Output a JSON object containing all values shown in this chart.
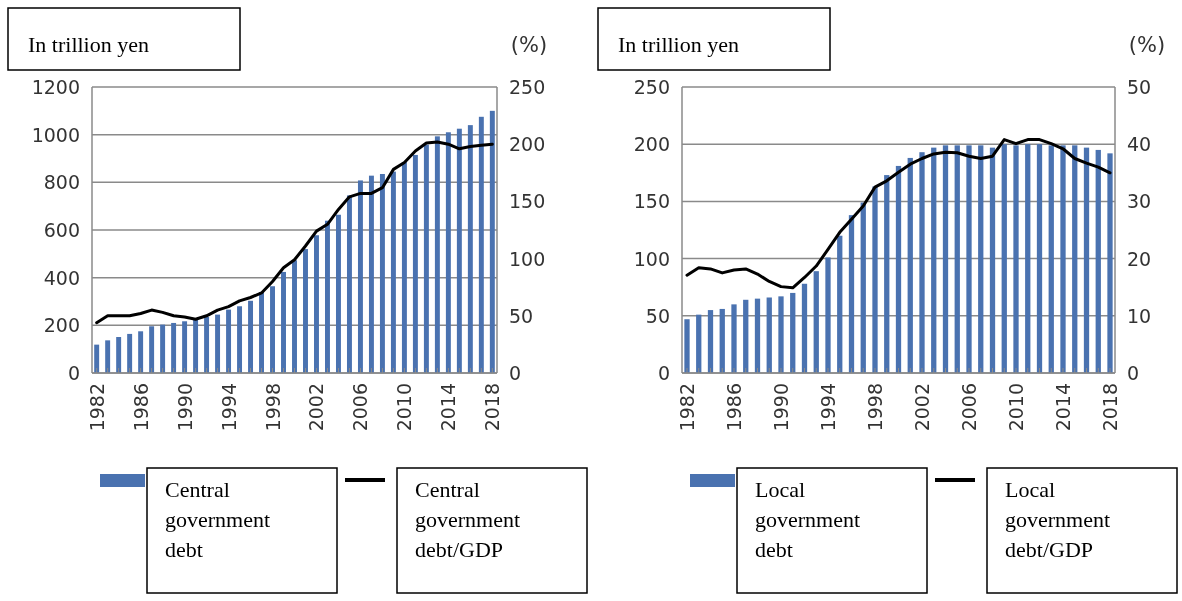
{
  "chart_data": [
    {
      "type": "bar",
      "ylabel": "In trillion yen",
      "y2label": "(%)",
      "categories": [
        "1982",
        null,
        null,
        null,
        "1986",
        null,
        null,
        null,
        "1990",
        null,
        null,
        null,
        "1994",
        null,
        null,
        null,
        "1998",
        null,
        null,
        null,
        "2002",
        null,
        null,
        null,
        "2006",
        null,
        null,
        null,
        "2010",
        null,
        null,
        null,
        "2014",
        null,
        null,
        null,
        "2018"
      ],
      "series": [
        {
          "name": "Central government debt",
          "color": "#4a72b0",
          "values": [
            119,
            137,
            151,
            164,
            175,
            196,
            203,
            210,
            217,
            224,
            235,
            245,
            266,
            280,
            303,
            340,
            364,
            424,
            473,
            520,
            578,
            639,
            664,
            745,
            808,
            828,
            835,
            845,
            885,
            915,
            958,
            993,
            1010,
            1025,
            1040,
            1075,
            1100
          ]
        },
        {
          "name": "Central government debt/GDP",
          "type": "line",
          "axis": "y2",
          "color": "#000000",
          "values": [
            44,
            50,
            50,
            50,
            52,
            55,
            53,
            50,
            49,
            47,
            50,
            55,
            58,
            63,
            66,
            70,
            80,
            92,
            99,
            111,
            124,
            130,
            143,
            154,
            157,
            157,
            162,
            178,
            184,
            194,
            201,
            202,
            200,
            196,
            198,
            199,
            200
          ]
        }
      ],
      "ylim": [
        0,
        1200
      ],
      "yticks": [
        0,
        200,
        400,
        600,
        800,
        1000,
        1200
      ],
      "y2lim": [
        0,
        250
      ],
      "y2ticks": [
        0,
        50,
        100,
        150,
        200,
        250
      ],
      "grid": "y",
      "legend": "bottom"
    },
    {
      "type": "bar",
      "ylabel": "In trillion yen",
      "y2label": "(%)",
      "categories": [
        "1982",
        null,
        null,
        null,
        "1986",
        null,
        null,
        null,
        "1990",
        null,
        null,
        null,
        "1994",
        null,
        null,
        null,
        "1998",
        null,
        null,
        null,
        "2002",
        null,
        null,
        null,
        "2006",
        null,
        null,
        null,
        "2010",
        null,
        null,
        null,
        "2014",
        null,
        null,
        null,
        "2018"
      ],
      "series": [
        {
          "name": "Local government debt",
          "color": "#4a72b0",
          "values": [
            47,
            51,
            55,
            56,
            60,
            64,
            65,
            66,
            67,
            70,
            78,
            89,
            101,
            120,
            138,
            149,
            163,
            173,
            181,
            188,
            193,
            197,
            199,
            199,
            199,
            199,
            197,
            200,
            199,
            200,
            200,
            199,
            199,
            199,
            197,
            195,
            192
          ]
        },
        {
          "name": "Local government debt/GDP",
          "type": "line",
          "axis": "y2",
          "color": "#000000",
          "values": [
            17.1,
            18.4,
            18.2,
            17.5,
            18,
            18.2,
            17.3,
            16,
            15.1,
            14.9,
            16.7,
            18.7,
            21.6,
            24.6,
            26.9,
            29.2,
            32.5,
            33.6,
            35.1,
            36.5,
            37.5,
            38.3,
            38.6,
            38.5,
            37.9,
            37.5,
            37.9,
            40.8,
            40.1,
            40.8,
            40.8,
            40.1,
            39.2,
            37.5,
            36.7,
            36,
            35
          ]
        }
      ],
      "ylim": [
        0,
        250
      ],
      "yticks": [
        0,
        50,
        100,
        150,
        200,
        250
      ],
      "y2lim": [
        0,
        50
      ],
      "y2ticks": [
        0,
        10,
        20,
        30,
        40,
        50
      ],
      "grid": "y",
      "legend": "bottom"
    }
  ]
}
